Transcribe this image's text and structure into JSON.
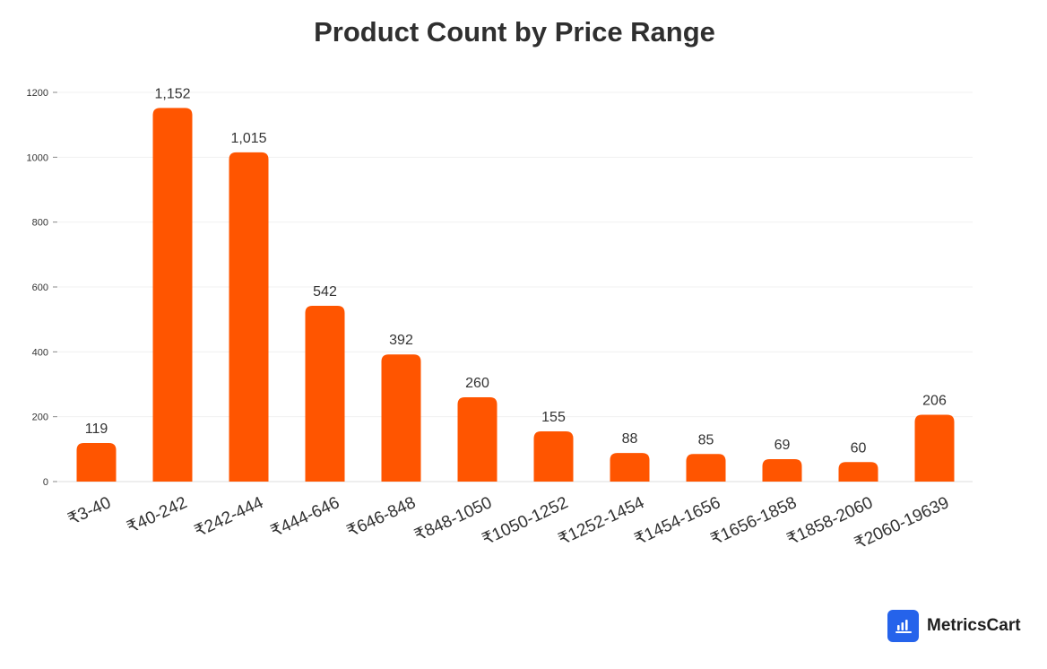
{
  "chart_data": {
    "type": "bar",
    "title": "Product Count by Price Range",
    "xlabel": "",
    "ylabel": "",
    "categories": [
      "₹3-40",
      "₹40-242",
      "₹242-444",
      "₹444-646",
      "₹646-848",
      "₹848-1050",
      "₹1050-1252",
      "₹1252-1454",
      "₹1454-1656",
      "₹1656-1858",
      "₹1858-2060",
      "₹2060-19639"
    ],
    "values": [
      119,
      1152,
      1015,
      542,
      392,
      260,
      155,
      88,
      85,
      69,
      60,
      206
    ],
    "data_labels": [
      "119",
      "1,152",
      "1,015",
      "542",
      "392",
      "260",
      "155",
      "88",
      "85",
      "69",
      "60",
      "206"
    ],
    "ylim": [
      0,
      1200
    ],
    "yticks": [
      0,
      200,
      400,
      600,
      800,
      1000,
      1200
    ],
    "grid": true,
    "legend": "none",
    "bar_color": "#ff5500"
  },
  "brand": {
    "name": "MetricsCart",
    "accent": "#2563eb"
  }
}
